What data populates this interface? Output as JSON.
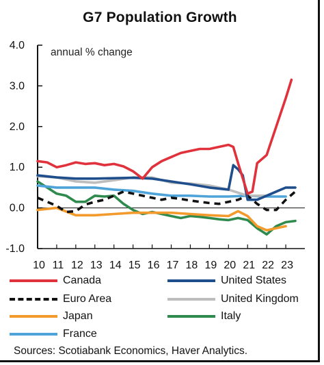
{
  "chart_data": {
    "type": "line",
    "title": "G7 Population Growth",
    "ylabel": "annual % change",
    "xlabel": "",
    "ylim": [
      -1.0,
      4.0
    ],
    "yticks": [
      "4.0",
      "3.0",
      "2.0",
      "1.0",
      "0.0",
      "-1.0"
    ],
    "ytick_values": [
      4,
      3,
      2,
      1,
      0,
      -1
    ],
    "xlim": [
      2010,
      2024
    ],
    "xticks": [
      "10",
      "11",
      "12",
      "13",
      "14",
      "15",
      "16",
      "17",
      "18",
      "19",
      "20",
      "21",
      "22",
      "23"
    ],
    "xtick_values": [
      2010,
      2011,
      2012,
      2013,
      2014,
      2015,
      2016,
      2017,
      2018,
      2019,
      2020,
      2021,
      2022,
      2023
    ],
    "legend_position": "bottom",
    "series": [
      {
        "name": "Canada",
        "color": "#e0323c",
        "dash": "solid",
        "x": [
          2010,
          2010.5,
          2011,
          2011.5,
          2012,
          2012.5,
          2013,
          2013.5,
          2014,
          2014.5,
          2015,
          2015.5,
          2016,
          2016.5,
          2017,
          2017.5,
          2018,
          2018.5,
          2019,
          2019.5,
          2020,
          2020.25,
          2020.5,
          2021,
          2021.25,
          2021.5,
          2022,
          2022.5,
          2023,
          2023.3
        ],
        "y": [
          1.15,
          1.12,
          1.0,
          1.05,
          1.12,
          1.08,
          1.1,
          1.05,
          1.08,
          1.02,
          0.9,
          0.72,
          1.0,
          1.15,
          1.25,
          1.35,
          1.4,
          1.45,
          1.45,
          1.5,
          1.55,
          1.5,
          1.1,
          0.35,
          0.4,
          1.1,
          1.3,
          2.0,
          2.7,
          3.15
        ]
      },
      {
        "name": "United States",
        "color": "#1f4e8c",
        "dash": "solid",
        "x": [
          2010,
          2011,
          2012,
          2013,
          2014,
          2015,
          2016,
          2017,
          2018,
          2019,
          2020,
          2020.25,
          2020.5,
          2020.75,
          2021,
          2021.5,
          2022,
          2022.5,
          2023,
          2023.5
        ],
        "y": [
          0.8,
          0.75,
          0.72,
          0.72,
          0.73,
          0.74,
          0.72,
          0.65,
          0.58,
          0.5,
          0.45,
          1.05,
          0.95,
          0.8,
          0.2,
          0.2,
          0.3,
          0.4,
          0.5,
          0.5
        ]
      },
      {
        "name": "Euro Area",
        "color": "#111111",
        "dash": "dashed",
        "x": [
          2010,
          2010.5,
          2011,
          2011.5,
          2012,
          2012.5,
          2013,
          2013.5,
          2014,
          2014.5,
          2015,
          2015.5,
          2016,
          2016.5,
          2017,
          2017.5,
          2018,
          2018.5,
          2019,
          2019.5,
          2020,
          2020.5,
          2021,
          2021.5,
          2022,
          2022.5,
          2023,
          2023.5
        ],
        "y": [
          0.25,
          0.15,
          0.05,
          -0.1,
          -0.08,
          0.08,
          0.15,
          0.2,
          0.3,
          0.4,
          0.35,
          0.3,
          0.25,
          0.2,
          0.25,
          0.22,
          0.18,
          0.15,
          0.12,
          0.1,
          0.15,
          0.2,
          0.3,
          0.1,
          -0.05,
          -0.05,
          0.2,
          0.4
        ]
      },
      {
        "name": "United Kingdom",
        "color": "#bdbdbd",
        "dash": "solid",
        "x": [
          2010,
          2011,
          2012,
          2013,
          2014,
          2015,
          2016,
          2017,
          2018,
          2019,
          2020,
          2021,
          2022
        ],
        "y": [
          0.78,
          0.75,
          0.65,
          0.62,
          0.68,
          0.75,
          0.75,
          0.62,
          0.6,
          0.55,
          0.45,
          0.3,
          0.3
        ]
      },
      {
        "name": "Japan",
        "color": "#f39a2c",
        "dash": "solid",
        "x": [
          2010,
          2011,
          2012,
          2013,
          2014,
          2015,
          2016,
          2017,
          2018,
          2019,
          2020,
          2020.5,
          2021,
          2021.5,
          2022,
          2022.5,
          2023
        ],
        "y": [
          -0.05,
          0.0,
          -0.18,
          -0.18,
          -0.15,
          -0.12,
          -0.12,
          -0.12,
          -0.15,
          -0.18,
          -0.2,
          -0.08,
          -0.2,
          -0.45,
          -0.55,
          -0.5,
          -0.45
        ]
      },
      {
        "name": "Italy",
        "color": "#2f8a4e",
        "dash": "solid",
        "x": [
          2010,
          2010.5,
          2011,
          2011.5,
          2012,
          2012.5,
          2013,
          2013.5,
          2014,
          2014.5,
          2015,
          2015.5,
          2016,
          2016.5,
          2017,
          2017.5,
          2018,
          2018.5,
          2019,
          2019.5,
          2020,
          2020.5,
          2021,
          2021.5,
          2022,
          2022.5,
          2023,
          2023.5
        ],
        "y": [
          0.65,
          0.5,
          0.35,
          0.3,
          0.15,
          0.15,
          0.3,
          0.28,
          0.3,
          0.1,
          -0.05,
          -0.15,
          -0.1,
          -0.15,
          -0.2,
          -0.25,
          -0.2,
          -0.22,
          -0.25,
          -0.28,
          -0.3,
          -0.25,
          -0.3,
          -0.5,
          -0.65,
          -0.45,
          -0.35,
          -0.32
        ]
      },
      {
        "name": "France",
        "color": "#4ea3d8",
        "dash": "solid",
        "x": [
          2010,
          2011,
          2012,
          2013,
          2014,
          2015,
          2016,
          2017,
          2018,
          2019,
          2020,
          2021,
          2022,
          2023
        ],
        "y": [
          0.55,
          0.5,
          0.5,
          0.5,
          0.45,
          0.42,
          0.35,
          0.3,
          0.3,
          0.28,
          0.28,
          0.3,
          0.28,
          0.28
        ]
      }
    ]
  },
  "source": "Sources: Scotiabank Economics, Haver Analytics."
}
